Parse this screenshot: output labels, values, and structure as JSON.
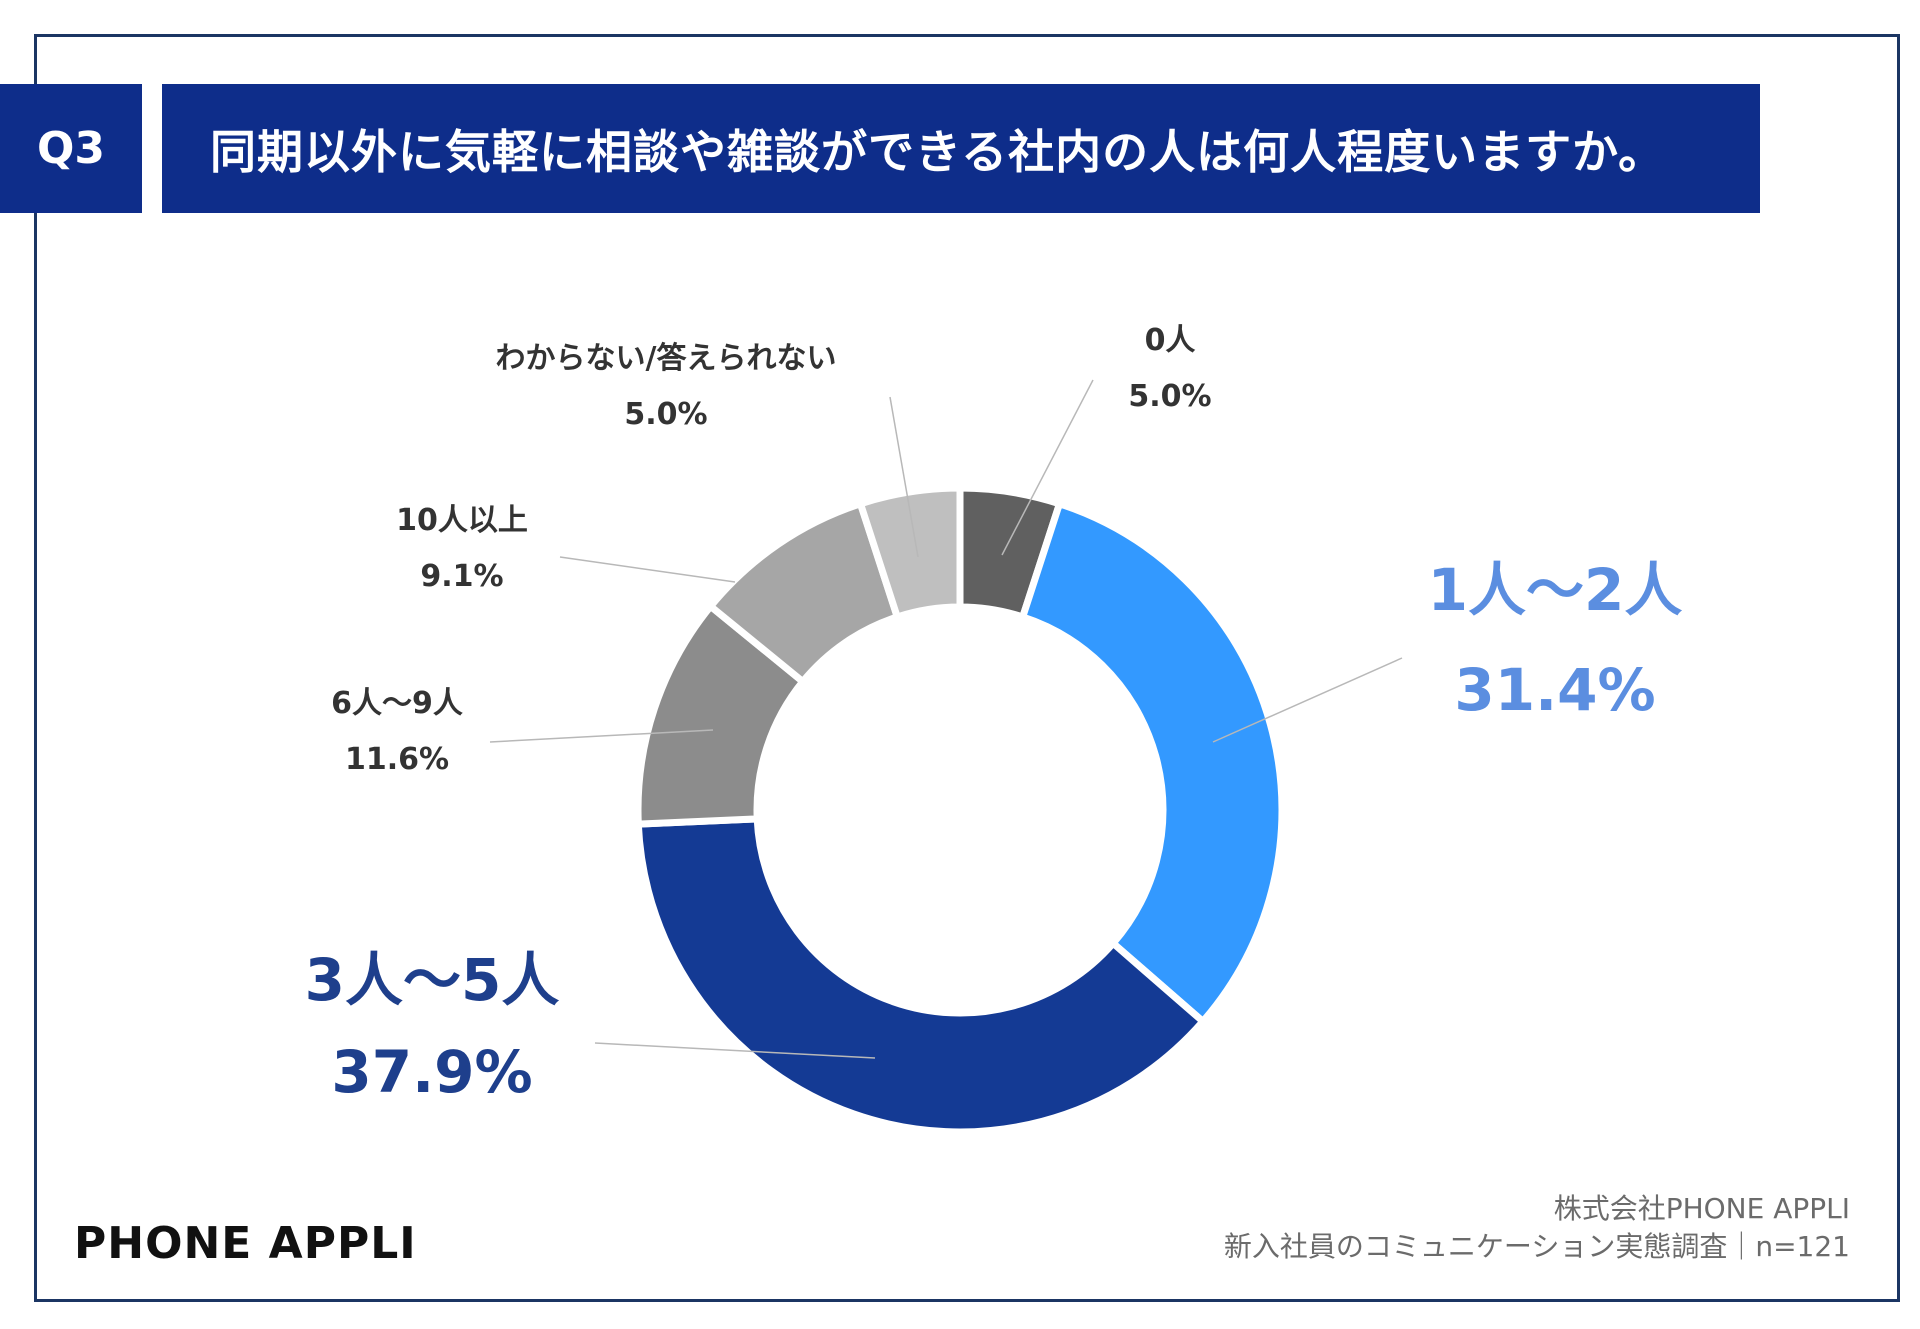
{
  "header": {
    "question_number": "Q3",
    "question_text": "同期以外に気軽に相談や雑談ができる社内の人は何人程度いますか。"
  },
  "chart_data": {
    "type": "pie",
    "variant": "donut",
    "title": "同期以外に気軽に相談や雑談ができる社内の人は何人程度いますか。",
    "unit": "%",
    "slices": [
      {
        "label": "0人",
        "value": 5.0,
        "value_text": "5.0%",
        "color": "#606060",
        "label_color": "#333333"
      },
      {
        "label": "1人～2人",
        "value": 31.4,
        "value_text": "31.4%",
        "color": "#3399ff",
        "label_color": "#5b8ee0"
      },
      {
        "label": "3人～5人",
        "value": 37.9,
        "value_text": "37.9%",
        "color": "#143a94",
        "label_color": "#1e3f8c"
      },
      {
        "label": "6人～9人",
        "value": 11.6,
        "value_text": "11.6%",
        "color": "#8c8c8c",
        "label_color": "#333333"
      },
      {
        "label": "10人以上",
        "value": 9.1,
        "value_text": "9.1%",
        "color": "#a6a6a6",
        "label_color": "#333333"
      },
      {
        "label": "わからない/答えられない",
        "value": 5.0,
        "value_text": "5.0%",
        "color": "#bfbfbf",
        "label_color": "#333333"
      }
    ]
  },
  "footer": {
    "brand": "PHONE  APPLI",
    "company": "株式会社PHONE APPLI",
    "survey": "新入社員のコミュニケーション実態調査｜n=121"
  }
}
